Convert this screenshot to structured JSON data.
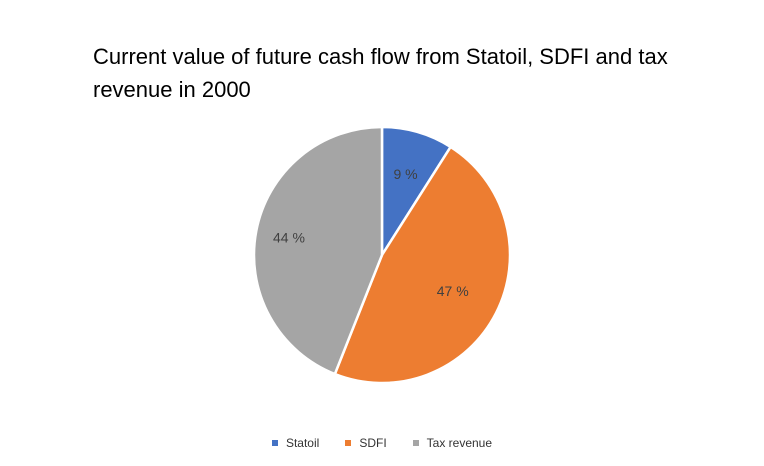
{
  "chart_data": {
    "type": "pie",
    "title": "Current value of future cash flow from Statoil, SDFI and tax revenue in 2000",
    "categories": [
      "Statoil",
      "SDFI",
      "Tax revenue"
    ],
    "values": [
      9,
      47,
      44
    ],
    "labels": [
      "9 %",
      "47 %",
      "44 %"
    ],
    "colors": [
      "#4472C4",
      "#ED7D31",
      "#A5A5A5"
    ],
    "legend_position": "bottom"
  }
}
